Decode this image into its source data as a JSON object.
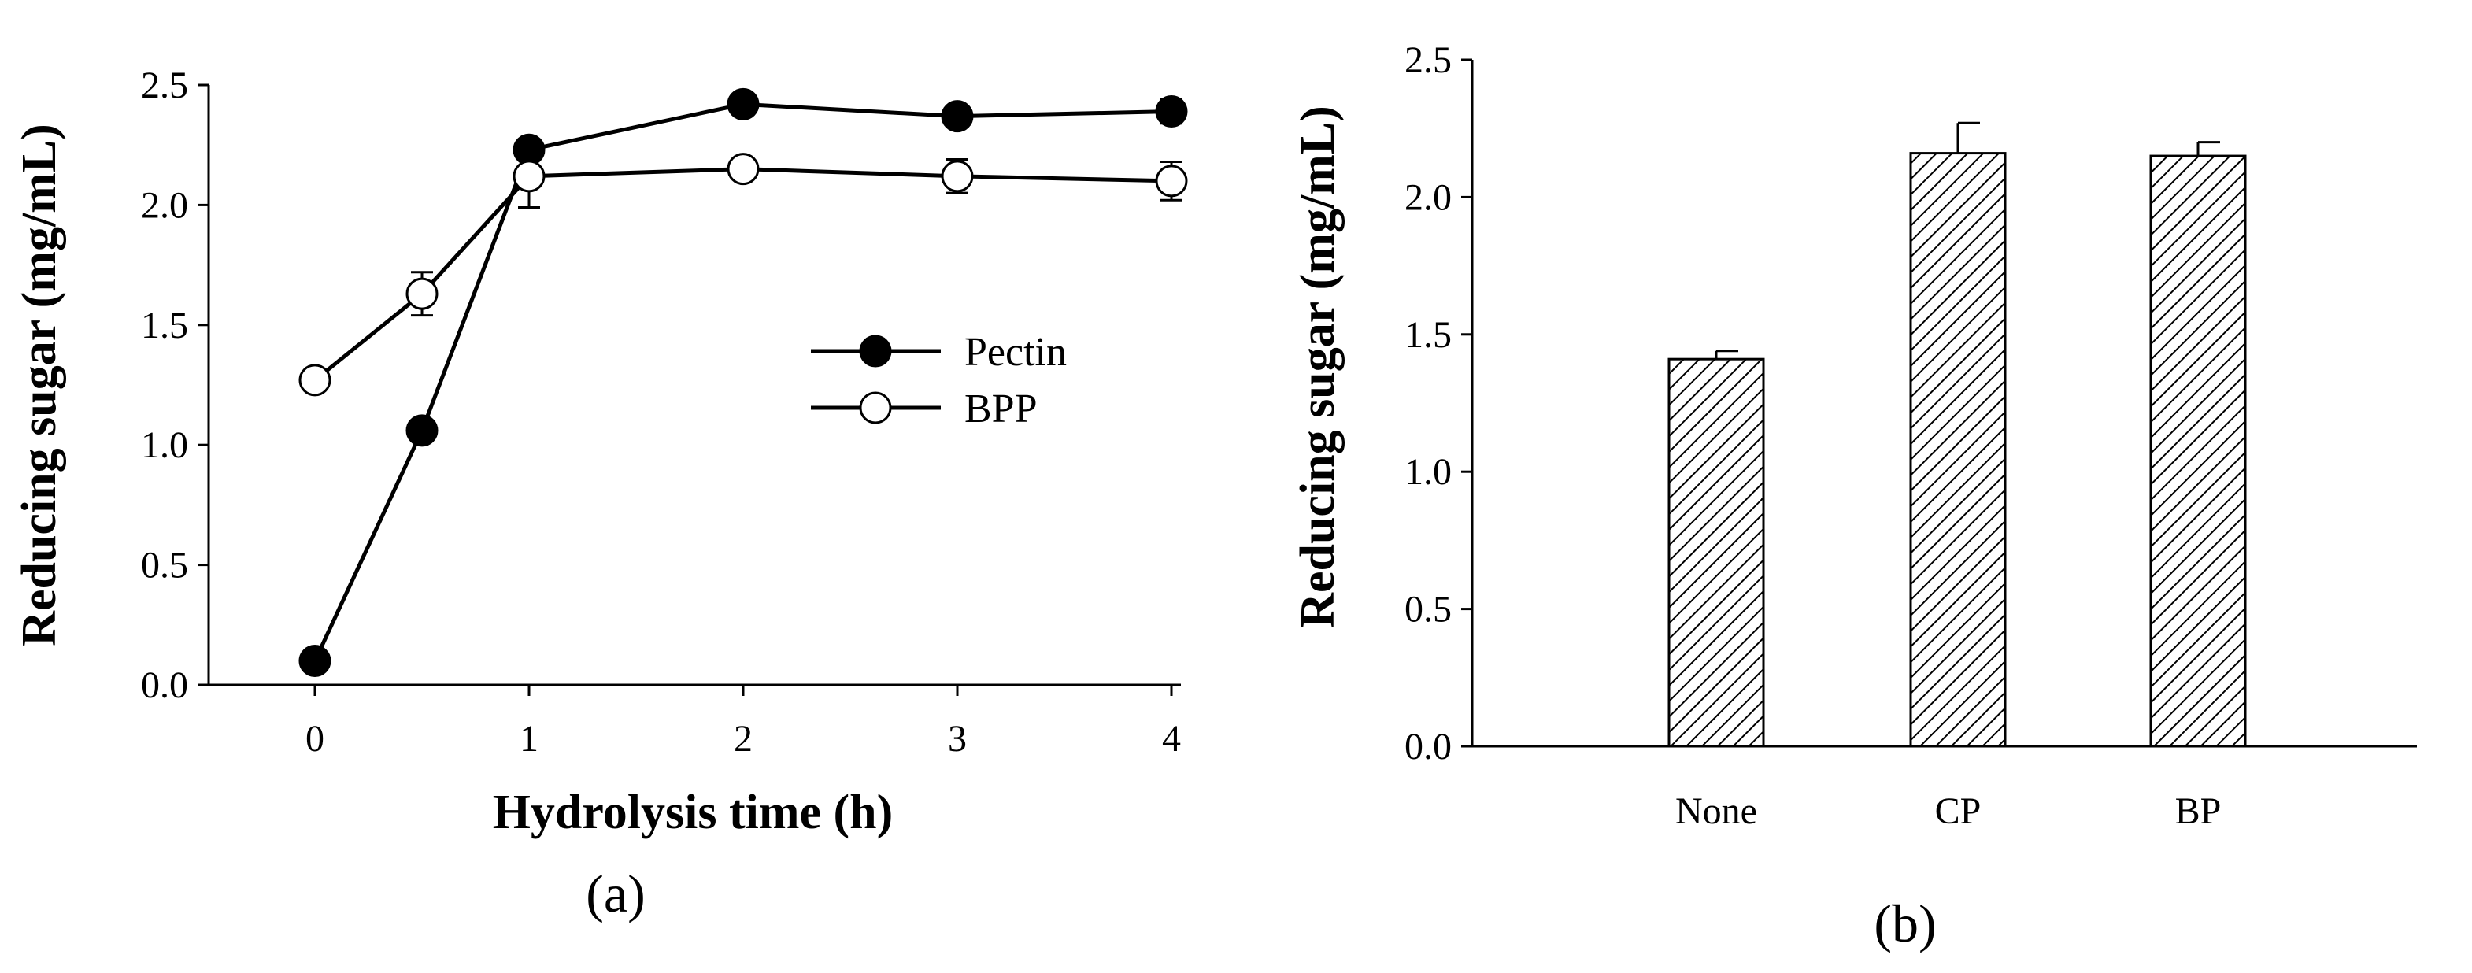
{
  "chart_data": [
    {
      "panel": "(a)",
      "type": "line",
      "title": "",
      "xlabel": "Hydrolysis time (h)",
      "ylabel": "Reducing sugar (mg/mL)",
      "xlim": [
        -0.5,
        4.05
      ],
      "ylim": [
        0,
        2.5
      ],
      "xticks": [
        "0",
        "1",
        "2",
        "3",
        "4"
      ],
      "yticks": [
        "0.0",
        "0.5",
        "1.0",
        "1.5",
        "2.0",
        "2.5"
      ],
      "legend_position": "center-right",
      "series": [
        {
          "name": "Pectin",
          "marker": "filled-circle",
          "x": [
            0,
            0.5,
            1,
            2,
            3,
            4
          ],
          "y": [
            0.1,
            1.06,
            2.23,
            2.42,
            2.37,
            2.39
          ],
          "err": [
            0.0,
            0.0,
            0.0,
            0.04,
            0.0,
            0.05
          ]
        },
        {
          "name": "BPP",
          "marker": "open-circle",
          "x": [
            0,
            0.5,
            1,
            2,
            3,
            4
          ],
          "y": [
            1.27,
            1.63,
            2.12,
            2.15,
            2.12,
            2.1
          ],
          "err": [
            0.0,
            0.09,
            0.13,
            0.0,
            0.07,
            0.08
          ]
        }
      ]
    },
    {
      "panel": "(b)",
      "type": "bar",
      "title": "",
      "xlabel": "",
      "ylabel": "Reducing sugar (mg/mL)",
      "ylim": [
        0,
        2.5
      ],
      "yticks": [
        "0.0",
        "0.5",
        "1.0",
        "1.5",
        "2.0",
        "2.5"
      ],
      "categories": [
        "None",
        "CP",
        "BP"
      ],
      "values": [
        1.41,
        2.16,
        2.15
      ],
      "err": [
        0.03,
        0.11,
        0.05
      ],
      "bar_fill": "diagonal-hatch"
    }
  ],
  "colors": {
    "ink": "#000000",
    "background": "#ffffff"
  }
}
